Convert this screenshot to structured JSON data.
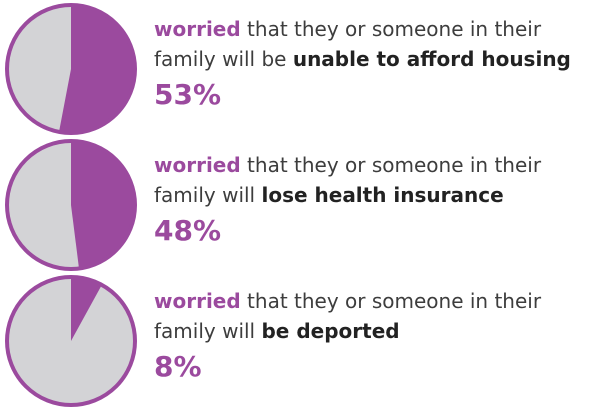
{
  "colors": {
    "accent": "#9b4a9e",
    "remainder": "#d3d3d6",
    "ring": "#9b4a9e"
  },
  "chart_data": [
    {
      "type": "pie",
      "value_percent": 53,
      "pre_text": "worried",
      "line1_rest": " that they or someone in their",
      "line2_pre": "family will be ",
      "line2_bold": "unable to afford housing",
      "label": "53%"
    },
    {
      "type": "pie",
      "value_percent": 48,
      "pre_text": "worried",
      "line1_rest": " that they or someone in their",
      "line2_pre": "family will ",
      "line2_bold": "lose health insurance",
      "label": "48%"
    },
    {
      "type": "pie",
      "value_percent": 8,
      "pre_text": "worried",
      "line1_rest": " that they or someone in their",
      "line2_pre": "family will ",
      "line2_bold": "be deported",
      "label": "8%"
    }
  ]
}
